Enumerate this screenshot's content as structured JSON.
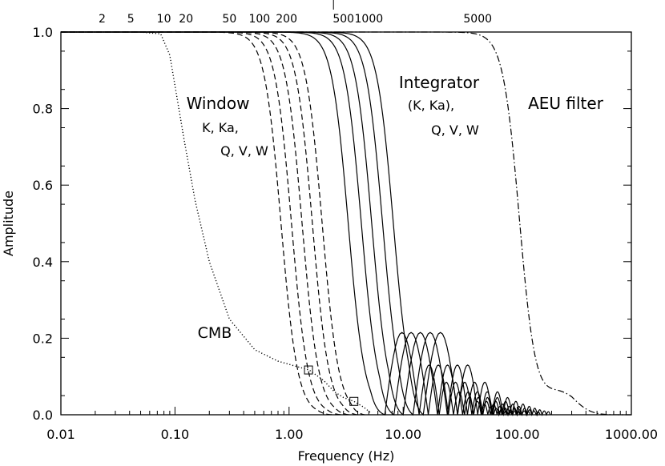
{
  "chart_data": {
    "type": "line",
    "xlabel": "Frequency (Hz)",
    "ylabel": "Amplitude",
    "xscale": "log",
    "xlim": [
      0.01,
      1000
    ],
    "ylim": [
      0.0,
      1.0
    ],
    "x_tick_labels": [
      "0.01",
      "0.10",
      "1.00",
      "10.00",
      "100.00",
      "1000.00"
    ],
    "x_tick_values": [
      0.01,
      0.1,
      1,
      10,
      100,
      1000
    ],
    "y_tick_labels": [
      "0.0",
      "0.2",
      "0.4",
      "0.6",
      "0.8",
      "1.0"
    ],
    "y_tick_values": [
      0.0,
      0.2,
      0.4,
      0.6,
      0.8,
      1.0
    ],
    "top_axis_tick_labels": [
      "2",
      "5",
      "10",
      "20",
      "50",
      "100",
      "200",
      "500",
      "1000",
      "5000"
    ],
    "top_axis_tick_freqs": [
      0.023,
      0.041,
      0.08,
      0.125,
      0.3,
      0.55,
      0.95,
      3.0,
      5.0,
      45.0
    ],
    "annotations": {
      "cmb": "CMB",
      "window": [
        "Window",
        "K, Ka,",
        "Q, V, W"
      ],
      "integrator": [
        "Integrator",
        "(K, Ka),",
        "Q, V, W"
      ],
      "aeu": "AEU filter"
    },
    "series": [
      {
        "group": "cmb",
        "style": "dotted",
        "half_freq": 0.155,
        "tail_freq": 4.5,
        "points": [
          [
            0.01,
            1.0
          ],
          [
            0.05,
            1.0
          ],
          [
            0.075,
            0.995
          ],
          [
            0.09,
            0.94
          ],
          [
            0.1,
            0.86
          ],
          [
            0.12,
            0.72
          ],
          [
            0.15,
            0.56
          ],
          [
            0.2,
            0.4
          ],
          [
            0.3,
            0.25
          ],
          [
            0.5,
            0.17
          ],
          [
            0.8,
            0.14
          ],
          [
            1.2,
            0.125
          ],
          [
            1.5,
            0.117
          ],
          [
            2.0,
            0.09
          ],
          [
            2.5,
            0.06
          ],
          [
            3.0,
            0.045
          ],
          [
            3.7,
            0.035
          ],
          [
            4.5,
            0.02
          ],
          [
            5.2,
            0.005
          ]
        ],
        "marker_points": [
          [
            1.48,
            0.117
          ],
          [
            3.7,
            0.035
          ]
        ]
      },
      {
        "group": "window",
        "style": "dashed",
        "half_freq": 0.85,
        "cutoff": 2.4
      },
      {
        "group": "window",
        "style": "dashed",
        "half_freq": 1.05,
        "cutoff": 2.9
      },
      {
        "group": "window",
        "style": "dashed",
        "half_freq": 1.3,
        "cutoff": 3.4
      },
      {
        "group": "window",
        "style": "dashed",
        "half_freq": 1.6,
        "cutoff": 4.0
      },
      {
        "group": "window",
        "style": "dashed",
        "half_freq": 1.95,
        "cutoff": 4.6
      },
      {
        "group": "integrator",
        "style": "solid",
        "half_freq": 3.3,
        "cutoff": 6.9
      },
      {
        "group": "integrator",
        "style": "solid",
        "half_freq": 4.3,
        "cutoff": 8.3
      },
      {
        "group": "integrator",
        "style": "solid",
        "half_freq": 5.3,
        "cutoff": 10.0
      },
      {
        "group": "integrator",
        "style": "solid",
        "half_freq": 6.6,
        "cutoff": 12.2
      },
      {
        "group": "integrator",
        "style": "solid",
        "half_freq": 8.2,
        "cutoff": 15.0
      },
      {
        "group": "aeu",
        "style": "dashdot",
        "half_freq": 105,
        "tail_freq": 700
      }
    ]
  }
}
